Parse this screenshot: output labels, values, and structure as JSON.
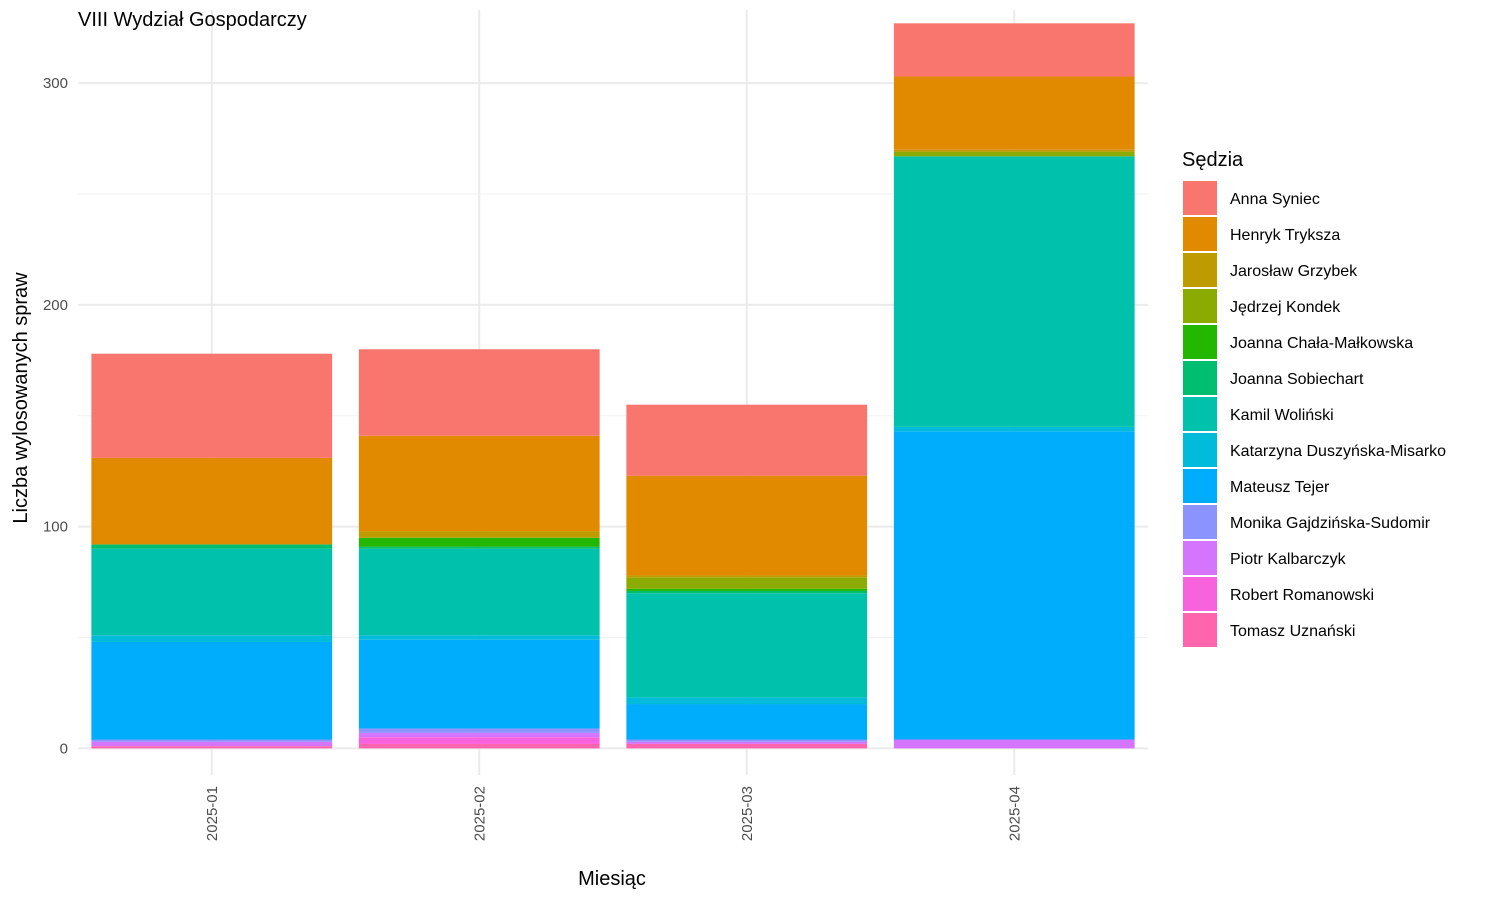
{
  "chart_data": {
    "type": "bar",
    "stacked": true,
    "title": "VIII Wydział Gospodarczy",
    "xlabel": "Miesiąc",
    "ylabel": "Liczba wylosowanych spraw",
    "ylim": [
      -12,
      333
    ],
    "yticks": [
      0,
      100,
      200,
      300
    ],
    "grid": true,
    "legend_title": "Sędzia",
    "legend_position": "right",
    "categories": [
      "2025-01",
      "2025-02",
      "2025-03",
      "2025-04"
    ],
    "series": [
      {
        "name": "Anna Syniec",
        "color": "#F8766D",
        "values": [
          47,
          39,
          32,
          24
        ]
      },
      {
        "name": "Henryk Tryksza",
        "color": "#E18A00",
        "values": [
          39,
          43,
          45,
          33
        ]
      },
      {
        "name": "Jarosław Grzybek",
        "color": "#BE9C00",
        "values": [
          0,
          3,
          1,
          1
        ]
      },
      {
        "name": "Jędrzej Kondek",
        "color": "#8CAB00",
        "values": [
          0,
          0,
          5,
          2
        ]
      },
      {
        "name": "Joanna Chała-Małkowska",
        "color": "#24B700",
        "values": [
          0,
          4,
          1,
          0
        ]
      },
      {
        "name": "Joanna Sobiechart",
        "color": "#00BE70",
        "values": [
          2,
          1,
          1,
          0
        ]
      },
      {
        "name": "Kamil Woliński",
        "color": "#00C1AB",
        "values": [
          39,
          39,
          47,
          122
        ]
      },
      {
        "name": "Katarzyna Duszyńska-Misarko",
        "color": "#00BBDA",
        "values": [
          3,
          2,
          3,
          2
        ]
      },
      {
        "name": "Mateusz Tejer",
        "color": "#00ACFC",
        "values": [
          44,
          40,
          16,
          139
        ]
      },
      {
        "name": "Monika Gajdzińska-Sudomir",
        "color": "#8B93FF",
        "values": [
          1,
          2,
          1,
          0
        ]
      },
      {
        "name": "Piotr Kalbarczyk",
        "color": "#D575FE",
        "values": [
          2,
          2,
          1,
          4
        ]
      },
      {
        "name": "Robert Romanowski",
        "color": "#F962DD",
        "values": [
          0,
          3,
          0,
          0
        ]
      },
      {
        "name": "Tomasz Uznański",
        "color": "#FF65AC",
        "values": [
          1,
          2,
          2,
          0
        ]
      }
    ]
  }
}
